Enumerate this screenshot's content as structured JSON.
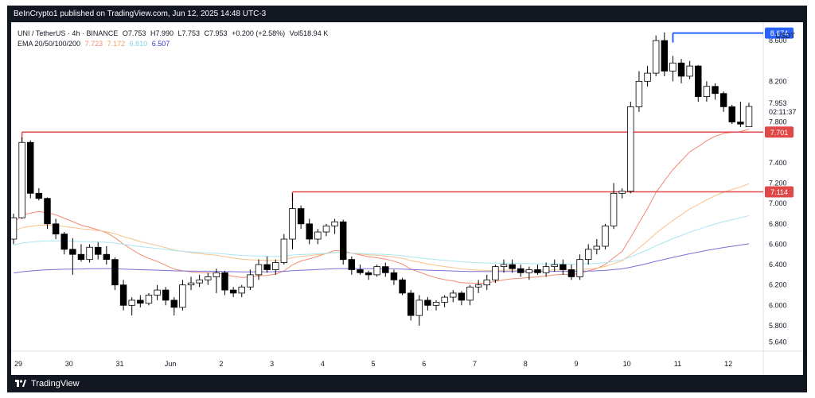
{
  "header": {
    "published": "BeInCrypto1 published on TradingView.com, Jun 12, 2025 14:48 UTC-3"
  },
  "legend": {
    "symbol": "UNI / TetherUS · 4h · BINANCE",
    "open": "O7.753",
    "high": "H7.990",
    "low": "L7.753",
    "close": "C7.953",
    "change": "+0.200 (+2.58%)",
    "volume": "Vol518.94 K",
    "ema_label": "EMA 20/50/100/200",
    "ema20": "7.723",
    "ema50": "7.172",
    "ema100": "6.810",
    "ema200": "6.507"
  },
  "currency": "USDT",
  "footer": {
    "brand": "TradingView"
  },
  "colors": {
    "up": "#ffffff",
    "down": "#000000",
    "ema20": "#f28b74",
    "ema50": "#f8c08a",
    "ema100": "#a8e6f2",
    "ema200": "#7b6fd8",
    "levels": "#e04848",
    "high_line": "#2962ff"
  },
  "chart_data": {
    "type": "candlestick",
    "ylim": [
      5.55,
      8.78
    ],
    "y_ticks": [
      "8.600",
      "8.200",
      "7.800",
      "7.400",
      "7.200",
      "7.000",
      "6.800",
      "6.600",
      "6.400",
      "6.200",
      "6.000",
      "5.800",
      "5.640"
    ],
    "x_ticks": [
      {
        "label": "29",
        "index": 0
      },
      {
        "label": "30",
        "index": 6
      },
      {
        "label": "31",
        "index": 12
      },
      {
        "label": "Jun",
        "index": 18
      },
      {
        "label": "2",
        "index": 24
      },
      {
        "label": "3",
        "index": 30
      },
      {
        "label": "4",
        "index": 36
      },
      {
        "label": "5",
        "index": 42
      },
      {
        "label": "6",
        "index": 48
      },
      {
        "label": "7",
        "index": 54
      },
      {
        "label": "8",
        "index": 60
      },
      {
        "label": "9",
        "index": 66
      },
      {
        "label": "10",
        "index": 72
      },
      {
        "label": "11",
        "index": 78
      },
      {
        "label": "12",
        "index": 84
      }
    ],
    "candles": [
      [
        6.65,
        6.9,
        6.6,
        6.86
      ],
      [
        6.86,
        7.65,
        6.85,
        7.6
      ],
      [
        7.6,
        7.62,
        7.05,
        7.1
      ],
      [
        7.1,
        7.15,
        7.03,
        7.05
      ],
      [
        7.05,
        7.06,
        6.75,
        6.8
      ],
      [
        6.8,
        6.85,
        6.65,
        6.7
      ],
      [
        6.7,
        6.72,
        6.5,
        6.55
      ],
      [
        6.55,
        6.66,
        6.3,
        6.5
      ],
      [
        6.5,
        6.6,
        6.43,
        6.45
      ],
      [
        6.45,
        6.6,
        6.42,
        6.57
      ],
      [
        6.57,
        6.62,
        6.45,
        6.5
      ],
      [
        6.5,
        6.58,
        6.4,
        6.45
      ],
      [
        6.45,
        6.47,
        6.15,
        6.2
      ],
      [
        6.2,
        6.25,
        5.95,
        6.0
      ],
      [
        6.0,
        6.08,
        5.9,
        6.05
      ],
      [
        6.05,
        6.1,
        5.98,
        6.02
      ],
      [
        6.02,
        6.12,
        6.0,
        6.1
      ],
      [
        6.1,
        6.2,
        6.05,
        6.15
      ],
      [
        6.15,
        6.18,
        6.0,
        6.05
      ],
      [
        6.05,
        6.08,
        5.9,
        5.98
      ],
      [
        5.98,
        6.25,
        5.95,
        6.2
      ],
      [
        6.2,
        6.28,
        6.15,
        6.22
      ],
      [
        6.22,
        6.3,
        6.18,
        6.25
      ],
      [
        6.25,
        6.32,
        6.2,
        6.28
      ],
      [
        6.28,
        6.36,
        6.12,
        6.32
      ],
      [
        6.32,
        6.34,
        6.1,
        6.15
      ],
      [
        6.15,
        6.18,
        6.08,
        6.12
      ],
      [
        6.12,
        6.2,
        6.08,
        6.18
      ],
      [
        6.18,
        6.35,
        6.15,
        6.3
      ],
      [
        6.3,
        6.45,
        6.25,
        6.4
      ],
      [
        6.4,
        6.48,
        6.32,
        6.35
      ],
      [
        6.35,
        6.45,
        6.3,
        6.42
      ],
      [
        6.42,
        6.7,
        6.4,
        6.65
      ],
      [
        6.65,
        7.1,
        6.55,
        6.95
      ],
      [
        6.95,
        6.98,
        6.75,
        6.8
      ],
      [
        6.8,
        6.85,
        6.6,
        6.65
      ],
      [
        6.65,
        6.75,
        6.6,
        6.72
      ],
      [
        6.72,
        6.8,
        6.68,
        6.78
      ],
      [
        6.78,
        6.85,
        6.7,
        6.82
      ],
      [
        6.82,
        6.84,
        6.4,
        6.45
      ],
      [
        6.45,
        6.48,
        6.3,
        6.35
      ],
      [
        6.35,
        6.4,
        6.3,
        6.32
      ],
      [
        6.32,
        6.34,
        6.25,
        6.3
      ],
      [
        6.3,
        6.4,
        6.28,
        6.38
      ],
      [
        6.38,
        6.42,
        6.28,
        6.32
      ],
      [
        6.32,
        6.35,
        6.2,
        6.25
      ],
      [
        6.25,
        6.27,
        6.1,
        6.12
      ],
      [
        6.12,
        6.15,
        5.85,
        5.9
      ],
      [
        5.9,
        6.1,
        5.8,
        6.05
      ],
      [
        6.05,
        6.08,
        5.95,
        6.0
      ],
      [
        6.0,
        6.05,
        5.95,
        6.03
      ],
      [
        6.03,
        6.1,
        5.98,
        6.08
      ],
      [
        6.08,
        6.15,
        6.03,
        6.12
      ],
      [
        6.12,
        6.14,
        6.0,
        6.05
      ],
      [
        6.05,
        6.2,
        6.0,
        6.18
      ],
      [
        6.18,
        6.25,
        6.12,
        6.2
      ],
      [
        6.2,
        6.3,
        6.15,
        6.25
      ],
      [
        6.25,
        6.4,
        6.22,
        6.38
      ],
      [
        6.38,
        6.45,
        6.32,
        6.4
      ],
      [
        6.4,
        6.45,
        6.32,
        6.36
      ],
      [
        6.36,
        6.4,
        6.28,
        6.32
      ],
      [
        6.32,
        6.38,
        6.25,
        6.35
      ],
      [
        6.35,
        6.4,
        6.3,
        6.32
      ],
      [
        6.32,
        6.42,
        6.28,
        6.38
      ],
      [
        6.38,
        6.45,
        6.33,
        6.4
      ],
      [
        6.4,
        6.45,
        6.3,
        6.35
      ],
      [
        6.35,
        6.4,
        6.25,
        6.28
      ],
      [
        6.28,
        6.5,
        6.25,
        6.45
      ],
      [
        6.45,
        6.6,
        6.4,
        6.55
      ],
      [
        6.55,
        6.65,
        6.5,
        6.58
      ],
      [
        6.58,
        6.8,
        6.55,
        6.78
      ],
      [
        6.78,
        7.2,
        6.75,
        7.1
      ],
      [
        7.1,
        7.15,
        7.05,
        7.12
      ],
      [
        7.12,
        8.0,
        7.1,
        7.95
      ],
      [
        7.95,
        8.3,
        7.9,
        8.2
      ],
      [
        8.2,
        8.35,
        8.15,
        8.28
      ],
      [
        8.28,
        8.65,
        8.25,
        8.6
      ],
      [
        8.6,
        8.68,
        8.25,
        8.3
      ],
      [
        8.3,
        8.45,
        8.2,
        8.38
      ],
      [
        8.38,
        8.42,
        8.18,
        8.25
      ],
      [
        8.25,
        8.4,
        8.22,
        8.35
      ],
      [
        8.35,
        8.36,
        8.0,
        8.05
      ],
      [
        8.05,
        8.2,
        8.0,
        8.15
      ],
      [
        8.15,
        8.18,
        8.02,
        8.08
      ],
      [
        8.08,
        8.1,
        7.9,
        7.95
      ],
      [
        7.95,
        7.97,
        7.78,
        7.8
      ],
      [
        7.8,
        8.0,
        7.75,
        7.78
      ],
      [
        7.753,
        7.99,
        7.753,
        7.953
      ]
    ],
    "ema": [
      {
        "name": "EMA 20",
        "period": 20,
        "color": "#f28b74"
      },
      {
        "name": "EMA 50",
        "period": 50,
        "color": "#f8c08a"
      },
      {
        "name": "EMA 100",
        "period": 100,
        "color": "#a8e6f2"
      },
      {
        "name": "EMA 200",
        "period": 200,
        "color": "#7b6fd8"
      }
    ],
    "levels": [
      {
        "value": 7.701,
        "label": "7.701",
        "start_index": 1,
        "color": "#e04848"
      },
      {
        "value": 7.114,
        "label": "7.114",
        "start_index": 33,
        "color": "#e04848"
      },
      {
        "value": 8.674,
        "label": "8.674",
        "start_index": 78,
        "color": "#2962ff"
      }
    ],
    "last_price": {
      "value": "7.953",
      "countdown": "02:11:37"
    }
  }
}
